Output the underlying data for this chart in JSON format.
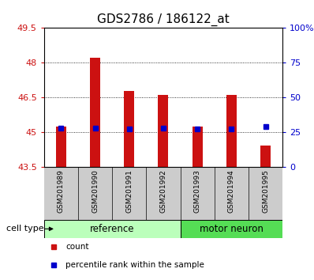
{
  "title": "GDS2786 / 186122_at",
  "samples": [
    "GSM201989",
    "GSM201990",
    "GSM201991",
    "GSM201992",
    "GSM201993",
    "GSM201994",
    "GSM201995"
  ],
  "ref_count": 4,
  "motor_count": 3,
  "bar_base": 43.5,
  "bar_tops": [
    45.22,
    48.22,
    46.78,
    46.62,
    45.22,
    46.62,
    44.42
  ],
  "percentile_values": [
    45.15,
    45.17,
    45.12,
    45.17,
    45.12,
    45.12,
    45.25
  ],
  "ylim_left": [
    43.5,
    49.5
  ],
  "ylim_right": [
    0,
    100
  ],
  "yticks_left": [
    43.5,
    45.0,
    46.5,
    48.0,
    49.5
  ],
  "ytick_labels_left": [
    "43.5",
    "45",
    "46.5",
    "48",
    "49.5"
  ],
  "yticks_right_vals": [
    0,
    25,
    50,
    75,
    100
  ],
  "ytick_labels_right": [
    "0",
    "25",
    "50",
    "75",
    "100%"
  ],
  "grid_yticks": [
    45.0,
    46.5,
    48.0
  ],
  "bar_color": "#cc1111",
  "percentile_color": "#0000cc",
  "ref_group_color": "#bbffbb",
  "motor_group_color": "#55dd55",
  "sample_box_color": "#cccccc",
  "bar_width": 0.3,
  "title_fontsize": 11,
  "tick_fontsize": 8,
  "label_fontsize": 7.5,
  "group_label_fontsize": 8.5,
  "sample_fontsize": 6.5
}
